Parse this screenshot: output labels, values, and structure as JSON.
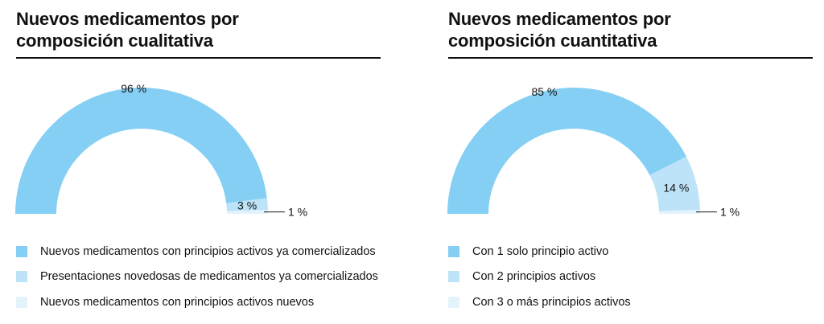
{
  "chart_data": [
    {
      "type": "pie",
      "variant": "half-donut",
      "title": "Nuevos medicamentos por composición cualitativa",
      "title_lines": [
        "Nuevos medicamentos por",
        "composición cualitativa"
      ],
      "categories": [
        "Nuevos medicamentos con principios activos ya comercializados",
        "Presentaciones novedosas de medicamentos ya comercializados",
        "Nuevos medicamentos con principios activos nuevos"
      ],
      "values": [
        96,
        3,
        1
      ],
      "value_labels": [
        "96 %",
        "3 %",
        "1 %"
      ],
      "colors": [
        "#84cff3",
        "#bde3f8",
        "#e3f3fc"
      ],
      "legend_placement": "bottom"
    },
    {
      "type": "pie",
      "variant": "half-donut",
      "title": "Nuevos medicamentos por composición cuantitativa",
      "title_lines": [
        "Nuevos medicamentos por",
        "composición cuantitativa"
      ],
      "categories": [
        "Con 1 solo principio activo",
        "Con 2 principios activos",
        "Con 3 o más principios activos"
      ],
      "values": [
        85,
        14,
        1
      ],
      "value_labels": [
        "85 %",
        "14 %",
        "1 %"
      ],
      "colors": [
        "#84cff3",
        "#bde3f8",
        "#e3f3fc"
      ],
      "legend_placement": "bottom"
    }
  ]
}
